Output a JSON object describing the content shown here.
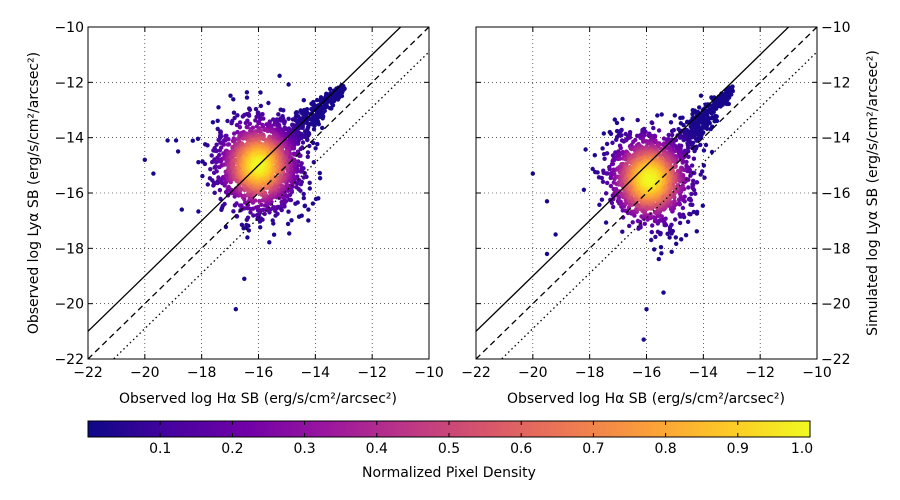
{
  "chart_data": [
    {
      "type": "scatter",
      "xlabel": "Observed log Hα SB (erg/s/cm²/arcsec²)",
      "ylabel": "Observed log Lyα SB (erg/s/cm²/arcsec²)",
      "ylabel_side": "left",
      "xlim": [
        -22,
        -10
      ],
      "ylim": [
        -22,
        -10
      ],
      "xticks": [
        "−22",
        "−20",
        "−18",
        "−16",
        "−14",
        "−12",
        "−10"
      ],
      "yticks": [
        "−22",
        "−20",
        "−18",
        "−16",
        "−14",
        "−12",
        "−10"
      ],
      "grid": true,
      "reference_lines": [
        {
          "style": "solid",
          "offset": 1.0
        },
        {
          "style": "dashed",
          "offset": 0.0
        },
        {
          "style": "dotted",
          "offset": -0.9
        }
      ],
      "density_peak": {
        "x": -16.0,
        "y": -15.0
      },
      "cloud": {
        "main_sx": 0.75,
        "main_sy": 0.85,
        "rotation_deg": 15,
        "tail_from": [
          -15.5,
          -14.5
        ],
        "tail_to": [
          -13.0,
          -12.2
        ]
      },
      "outliers": [
        [
          -20.0,
          -14.8
        ],
        [
          -19.7,
          -15.3
        ],
        [
          -19.2,
          -14.1
        ],
        [
          -18.9,
          -14.1
        ],
        [
          -18.7,
          -16.6
        ],
        [
          -16.8,
          -20.2
        ],
        [
          -16.5,
          -19.1
        ]
      ]
    },
    {
      "type": "scatter",
      "xlabel": "Observed log Hα SB (erg/s/cm²/arcsec²)",
      "ylabel": "Simulated log Lyα SB (erg/s/cm²/arcsec²)",
      "ylabel_side": "right",
      "xlim": [
        -22,
        -10
      ],
      "ylim": [
        -22,
        -10
      ],
      "xticks": [
        "−22",
        "−20",
        "−18",
        "−16",
        "−14",
        "−12",
        "−10"
      ],
      "yticks": [
        "−22",
        "−20",
        "−18",
        "−16",
        "−14",
        "−12",
        "−10"
      ],
      "grid": true,
      "reference_lines": [
        {
          "style": "solid",
          "offset": 1.0
        },
        {
          "style": "dashed",
          "offset": 0.0
        },
        {
          "style": "dotted",
          "offset": -0.9
        }
      ],
      "density_peak": {
        "x": -15.9,
        "y": -15.5
      },
      "cloud": {
        "main_sx": 0.65,
        "main_sy": 0.8,
        "rotation_deg": 30,
        "tail_from": [
          -15.4,
          -14.8
        ],
        "tail_to": [
          -13.0,
          -12.3
        ]
      },
      "outliers": [
        [
          -20.0,
          -15.3
        ],
        [
          -19.5,
          -16.3
        ],
        [
          -19.5,
          -18.2
        ],
        [
          -19.2,
          -17.5
        ],
        [
          -16.1,
          -21.3
        ],
        [
          -16.0,
          -20.2
        ],
        [
          -15.4,
          -19.6
        ]
      ]
    }
  ],
  "colorbar": {
    "label": "Normalized Pixel Density",
    "min": 0.0,
    "max": 1.0,
    "colormap": "plasma",
    "ticks": [
      "0.1",
      "0.2",
      "0.3",
      "0.4",
      "0.5",
      "0.6",
      "0.7",
      "0.8",
      "0.9",
      "1.0"
    ]
  },
  "colormap_stops": [
    "#0d0887",
    "#46039f",
    "#7201a8",
    "#9c179e",
    "#bd3786",
    "#d8576b",
    "#ed7953",
    "#fb9f3a",
    "#fdca26",
    "#f0f921"
  ]
}
